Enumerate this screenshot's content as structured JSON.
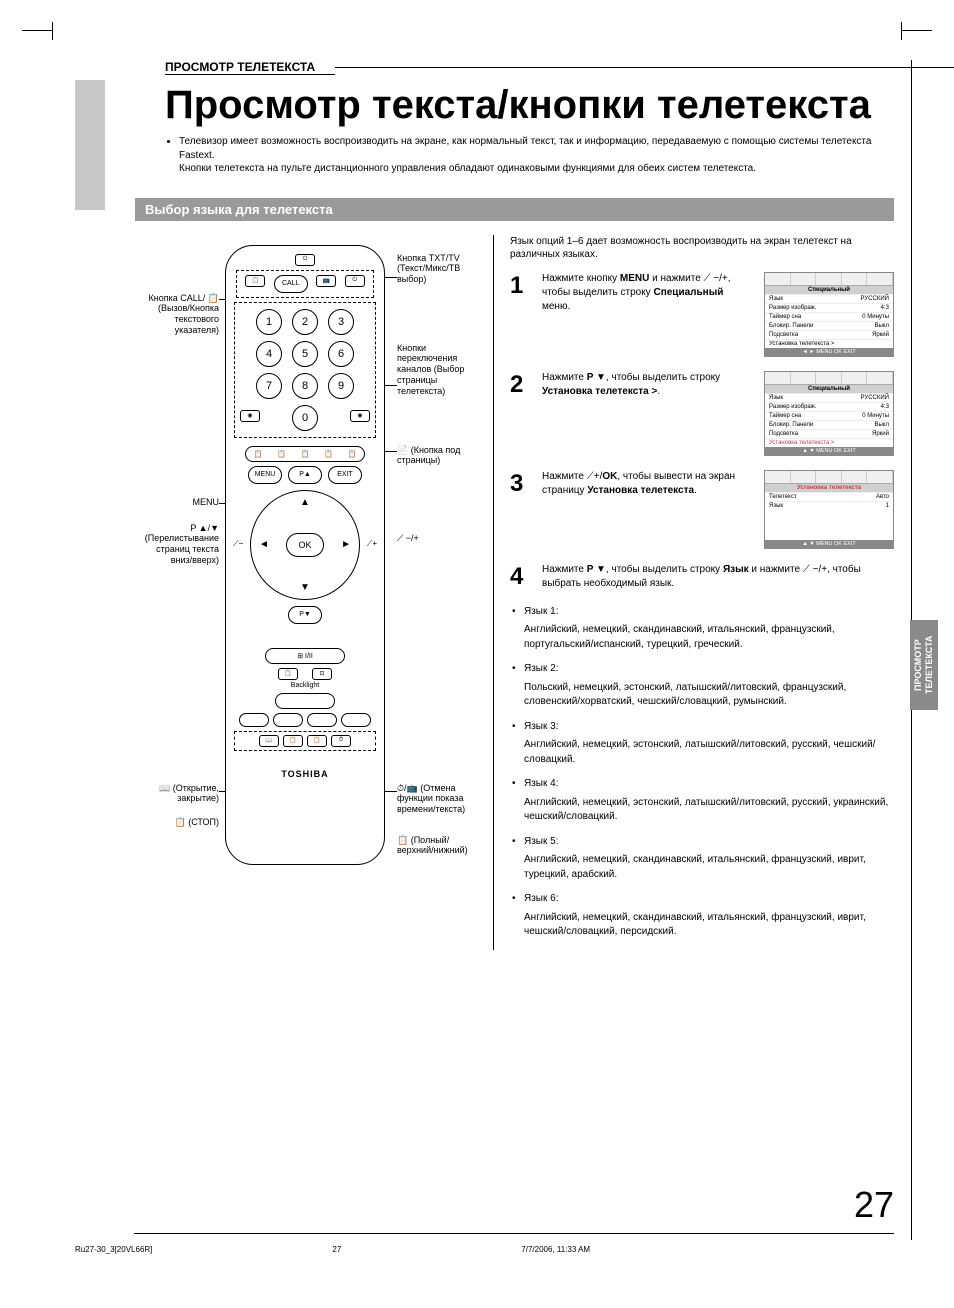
{
  "section_label": "ПРОСМОТР ТЕЛЕТЕКСТА",
  "main_title": "Просмотр текста/кнопки телетекста",
  "intro_bullet": "Телевизор имеет возможность воспроизводить на экране, как нормальный текст, так и информацию, передаваемую с помощью системы телетекста Fastext.",
  "intro_cont": "Кнопки телетекста на пульте дистанционного управления обладают одинаковыми функциями для обеих систем телетекста.",
  "sub_bar": "Выбор языка для телетекста",
  "callouts": {
    "call": "Кнопка CALL/ 📋 (Вызов/Кнопка текстового указателя)",
    "txttv": "Кнопка TXT/TV (Текст/Микс/ТВ выбор)",
    "nums": "Кнопки переключения каналов (Выбор страницы телетекста)",
    "subpage": "📄 (Кнопка под страницы)",
    "menu": "MENU",
    "pupdown": "P ▲/▼ (Перелистывание страниц текста вниз/вверх)",
    "volpm": "⟋ −/+",
    "reveal": "📖 (Открытие, закрытие)",
    "stop": "📋 (СТОП)",
    "cancel": "⏱/📺 (Отмена функции показа времени/текста)",
    "size": "📋 (Полный/верхний/нижний)"
  },
  "remote": {
    "call_label": "CALL",
    "menu_label": "MENU",
    "exit_label": "EXIT",
    "ok_label": "OK",
    "pa_label": "P▲",
    "pv_label": "P▼",
    "backlight": "Backlight",
    "brand": "TOSHIBA",
    "numbers": [
      "1",
      "2",
      "3",
      "4",
      "5",
      "6",
      "7",
      "8",
      "9",
      "0"
    ]
  },
  "rc_intro": "Язык опций 1–6 дает возможность воспроизводить на экран телетекст на различных языках.",
  "steps": [
    {
      "n": "1",
      "t": "Нажмите кнопку <b>MENU</b> и нажмите ⟋ −/+, чтобы выделить строку <b>Специальный</b> меню."
    },
    {
      "n": "2",
      "t": "Нажмите <b>P ▼</b>, чтобы выделить строку <b>Установка телетекста ></b>."
    },
    {
      "n": "3",
      "t": "Нажмите ⟋+/<b>OK</b>, чтобы вывести на экран страницу <b>Установка телетекста</b>."
    },
    {
      "n": "4",
      "t": "Нажмите <b>P ▼</b>, чтобы выделить строку <b>Язык</b> и нажмите ⟋ −/+, чтобы выбрать необходимый язык."
    }
  ],
  "osd": {
    "title1": "Специальный",
    "rows1": [
      [
        "Язык",
        "РУССКИЙ"
      ],
      [
        "Размер изображ.",
        "4:3"
      ],
      [
        "Таймер сна",
        "0 Минуты"
      ],
      [
        "Блокир. Панели",
        "Выкл"
      ],
      [
        "Подсветка",
        "Яркий"
      ],
      [
        "Установка телетекста >",
        ""
      ]
    ],
    "title3": "Установка телетекста",
    "rows3": [
      [
        "Телетекст",
        "Авто"
      ],
      [
        "Язык",
        "1"
      ]
    ],
    "foot": "◄ ► MENU OK EXIT",
    "foot2": "▲ ▼ MENU OK EXIT"
  },
  "langs": [
    {
      "l": "Язык 1:",
      "d": "Английский, немецкий, скандинавский, итальянский, французский, португальский/испанский, турецкий, греческий."
    },
    {
      "l": "Язык 2:",
      "d": "Польский, немецкий, эстонский, латышский/литовский, французский, словенский/хорватский, чешский/словацкий, румынский."
    },
    {
      "l": "Язык 3:",
      "d": "Английский, немецкий, эстонский, латышский/литовский, русский, чешский/словацкий."
    },
    {
      "l": "Язык 4:",
      "d": "Английский, немецкий, эстонский, латышский/литовский, русский, украинский, чешский/словацкий."
    },
    {
      "l": "Язык 5:",
      "d": "Английский, немецкий, скандинавский, итальянский, французский, иврит, турецкий, арабский."
    },
    {
      "l": "Язык 6:",
      "d": "Английский, немецкий, скандинавский, итальянский, французский, иврит, чешский/словацкий, персидский."
    }
  ],
  "side_tab": "ПРОСМОТР ТЕЛЕТЕКСТА",
  "page_number": "27",
  "footer": {
    "file": "Ru27-30_3[20VL66R]",
    "pg": "27",
    "ts": "7/7/2006, 11:33 AM"
  }
}
